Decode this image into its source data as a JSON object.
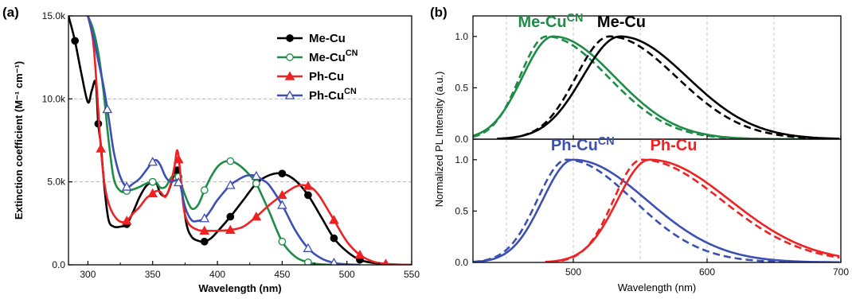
{
  "chart_data": [
    {
      "type": "line",
      "panel_label": "(a)",
      "xlabel": "Wavelength (nm)",
      "ylabel": "Extinction coefficient (M⁻¹ cm⁻¹)",
      "xlim": [
        285,
        550
      ],
      "ylim": [
        0,
        15000
      ],
      "x_ticks": [
        300,
        350,
        400,
        450,
        500,
        550
      ],
      "y_ticks": [
        {
          "value": 0,
          "label": "0.0"
        },
        {
          "value": 5000,
          "label": "5.0k"
        },
        {
          "value": 10000,
          "label": "10.0k"
        },
        {
          "value": 15000,
          "label": "15.0k"
        }
      ],
      "grid": "horizontal dashed",
      "legend_position": "top-right",
      "series": [
        {
          "name": "Me-Cu",
          "name_main": "Me-Cu",
          "name_sup": "",
          "color": "#000000",
          "marker": "filled-circle",
          "x": [
            285,
            290,
            295,
            300,
            303,
            306,
            308,
            310,
            313,
            316,
            320,
            325,
            330,
            335,
            340,
            345,
            350,
            353,
            356,
            360,
            363,
            366,
            369,
            372,
            376,
            380,
            385,
            390,
            395,
            400,
            410,
            420,
            430,
            440,
            450,
            460,
            470,
            480,
            490,
            500,
            510,
            520,
            530,
            540
          ],
          "y": [
            15000,
            13500,
            11500,
            9800,
            10500,
            11000,
            8500,
            7200,
            4500,
            2700,
            2300,
            2300,
            2450,
            3200,
            4100,
            4750,
            5000,
            4900,
            4300,
            4150,
            4600,
            5300,
            5700,
            4800,
            2500,
            1700,
            1450,
            1400,
            1600,
            2000,
            2900,
            3900,
            4900,
            5400,
            5500,
            5100,
            4200,
            2900,
            1600,
            800,
            300,
            120,
            40,
            10
          ],
          "markers_x": [
            290,
            308,
            330,
            350,
            369,
            390,
            410,
            430,
            450,
            470,
            490,
            510
          ]
        },
        {
          "name": "Me-Cu^CN",
          "name_main": "Me-Cu",
          "name_sup": "CN",
          "color": "#1e8c46",
          "marker": "open-circle",
          "x": [
            300,
            304,
            308,
            312,
            316,
            320,
            325,
            330,
            335,
            340,
            345,
            350,
            353,
            356,
            360,
            363,
            366,
            370,
            375,
            380,
            385,
            390,
            395,
            400,
            405,
            410,
            415,
            420,
            425,
            430,
            440,
            450,
            460,
            470,
            480,
            490,
            500
          ],
          "y": [
            15000,
            14200,
            12800,
            10500,
            7500,
            5200,
            4450,
            4450,
            4550,
            4700,
            4900,
            5000,
            4950,
            4650,
            4700,
            5100,
            5400,
            5300,
            4200,
            3400,
            3600,
            4500,
            5300,
            5900,
            6200,
            6250,
            6100,
            5800,
            5400,
            4900,
            3200,
            1400,
            500,
            150,
            30,
            10,
            0
          ],
          "markers_x": [
            330,
            350,
            370,
            390,
            410,
            430,
            450,
            470
          ]
        },
        {
          "name": "Ph-Cu",
          "name_main": "Ph-Cu",
          "name_sup": "",
          "color": "#ee2222",
          "marker": "filled-triangle",
          "x": [
            300,
            304,
            307,
            310,
            313,
            316,
            320,
            325,
            330,
            335,
            340,
            345,
            350,
            353,
            356,
            360,
            364,
            367,
            369,
            371,
            374,
            377,
            380,
            385,
            390,
            395,
            400,
            410,
            420,
            430,
            440,
            450,
            460,
            465,
            470,
            475,
            480,
            490,
            500,
            510,
            520,
            530,
            540,
            550
          ],
          "y": [
            15000,
            13500,
            10500,
            7000,
            4800,
            3700,
            3000,
            2600,
            2650,
            3100,
            3500,
            4000,
            4300,
            4450,
            4400,
            4100,
            4900,
            6000,
            6900,
            5800,
            3400,
            2600,
            2300,
            2100,
            2050,
            2050,
            2050,
            2100,
            2300,
            2900,
            3600,
            4200,
            4700,
            4800,
            4750,
            4500,
            4000,
            2700,
            1400,
            600,
            200,
            60,
            15,
            5
          ],
          "markers_x": [
            310,
            330,
            350,
            370,
            390,
            410,
            430,
            450,
            470,
            490,
            510,
            530
          ]
        },
        {
          "name": "Ph-Cu^CN",
          "name_main": "Ph-Cu",
          "name_sup": "CN",
          "color": "#3c50b4",
          "marker": "open-triangle",
          "x": [
            300,
            304,
            308,
            312,
            316,
            320,
            325,
            330,
            335,
            340,
            345,
            350,
            353,
            356,
            360,
            364,
            368,
            371,
            375,
            380,
            385,
            390,
            395,
            400,
            410,
            420,
            425,
            430,
            435,
            440,
            450,
            460,
            470,
            480,
            490,
            500,
            510
          ],
          "y": [
            15000,
            13800,
            12300,
            10800,
            8900,
            6800,
            5300,
            4700,
            4900,
            5200,
            5700,
            6200,
            6300,
            6000,
            5300,
            5000,
            5100,
            4900,
            3500,
            2700,
            2650,
            2800,
            3300,
            3900,
            4800,
            5300,
            5400,
            5350,
            5100,
            4800,
            3600,
            2100,
            1000,
            400,
            120,
            30,
            0
          ],
          "markers_x": [
            315,
            330,
            350,
            370,
            390,
            410,
            430,
            450,
            470,
            490
          ]
        }
      ]
    },
    {
      "type": "line",
      "panel_label": "(b)",
      "xlabel": "Wavelength (nm)",
      "ylabel": "Normalized PL Intensity (a.u.)",
      "xlim": [
        425,
        700
      ],
      "x_ticks": [
        500,
        600,
        700
      ],
      "x_grid": [
        450,
        500,
        550,
        600,
        650
      ],
      "subplots": [
        {
          "position": "top",
          "ylim": [
            0,
            1.2
          ],
          "y_ticks": [
            {
              "value": 0,
              "label": "0.0"
            },
            {
              "value": 0.5,
              "label": "0.5"
            },
            {
              "value": 1,
              "label": "1.0"
            }
          ],
          "annotations": [
            {
              "main": "Me-Cu",
              "sup": "CN",
              "color": "#1e8c46",
              "x": 483,
              "y": 1.09
            },
            {
              "main": "Me-Cu",
              "sup": "",
              "color": "#000000",
              "x": 536,
              "y": 1.09
            }
          ],
          "series": [
            {
              "name": "Me-Cu^CN",
              "style": "solid",
              "color": "#1e8c46",
              "peak": 485,
              "width_left": 23,
              "width_right": 46
            },
            {
              "name": "Me-Cu^CN",
              "style": "dashed",
              "color": "#1e8c46",
              "peak": 480,
              "width_left": 20,
              "width_right": 46
            },
            {
              "name": "Me-Cu",
              "style": "solid",
              "color": "#000000",
              "peak": 535,
              "width_left": 28,
              "width_right": 50
            },
            {
              "name": "Me-Cu",
              "style": "dashed",
              "color": "#000000",
              "peak": 527,
              "width_left": 25,
              "width_right": 50
            }
          ]
        },
        {
          "position": "bottom",
          "ylim": [
            0,
            1.2
          ],
          "y_ticks": [
            {
              "value": 0,
              "label": "0.0"
            },
            {
              "value": 0.5,
              "label": "0.5"
            },
            {
              "value": 1,
              "label": "1.0"
            }
          ],
          "annotations": [
            {
              "main": "Ph-Cu",
              "sup": "CN",
              "color": "#3c50b4",
              "x": 507,
              "y": 1.09
            },
            {
              "main": "Ph-Cu",
              "sup": "",
              "color": "#ee2222",
              "x": 575,
              "y": 1.09
            }
          ],
          "series": [
            {
              "name": "Ph-Cu^CN",
              "style": "solid",
              "color": "#3c50b4",
              "peak": 500,
              "width_left": 23,
              "width_right": 55
            },
            {
              "name": "Ph-Cu^CN",
              "style": "dashed",
              "color": "#3c50b4",
              "peak": 495,
              "width_left": 22,
              "width_right": 50
            },
            {
              "name": "Ph-Cu",
              "style": "solid",
              "color": "#ee2222",
              "peak": 557,
              "width_left": 24,
              "width_right": 60
            },
            {
              "name": "Ph-Cu",
              "style": "dashed",
              "color": "#ee2222",
              "peak": 551,
              "width_left": 21,
              "width_right": 60
            }
          ]
        }
      ]
    }
  ]
}
